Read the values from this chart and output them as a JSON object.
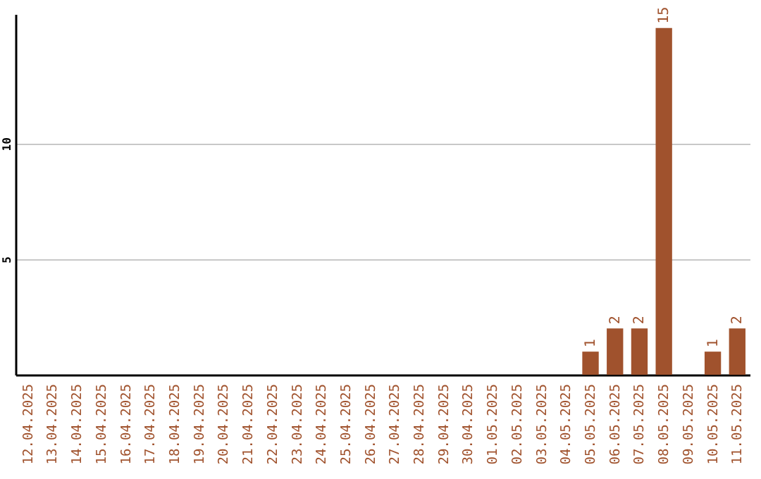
{
  "chart_data": {
    "type": "bar",
    "categories": [
      "12.04.2025",
      "13.04.2025",
      "14.04.2025",
      "15.04.2025",
      "16.04.2025",
      "17.04.2025",
      "18.04.2025",
      "19.04.2025",
      "20.04.2025",
      "21.04.2025",
      "22.04.2025",
      "23.04.2025",
      "24.04.2025",
      "25.04.2025",
      "26.04.2025",
      "27.04.2025",
      "28.04.2025",
      "29.04.2025",
      "30.04.2025",
      "01.05.2025",
      "02.05.2025",
      "03.05.2025",
      "04.05.2025",
      "05.05.2025",
      "06.05.2025",
      "07.05.2025",
      "08.05.2025",
      "09.05.2025",
      "10.05.2025",
      "11.05.2025"
    ],
    "values": [
      0,
      0,
      0,
      0,
      0,
      0,
      0,
      0,
      0,
      0,
      0,
      0,
      0,
      0,
      0,
      0,
      0,
      0,
      0,
      0,
      0,
      0,
      0,
      1,
      2,
      2,
      15,
      0,
      1,
      2
    ],
    "value_labels": [
      null,
      null,
      null,
      null,
      null,
      null,
      null,
      null,
      null,
      null,
      null,
      null,
      null,
      null,
      null,
      null,
      null,
      null,
      null,
      null,
      null,
      null,
      null,
      "1",
      "2",
      "2",
      "15",
      null,
      "1",
      "2"
    ],
    "color": "#a0522d",
    "ylim": [
      0,
      15.6
    ],
    "yticks": [
      5,
      10
    ],
    "grid": "y"
  }
}
